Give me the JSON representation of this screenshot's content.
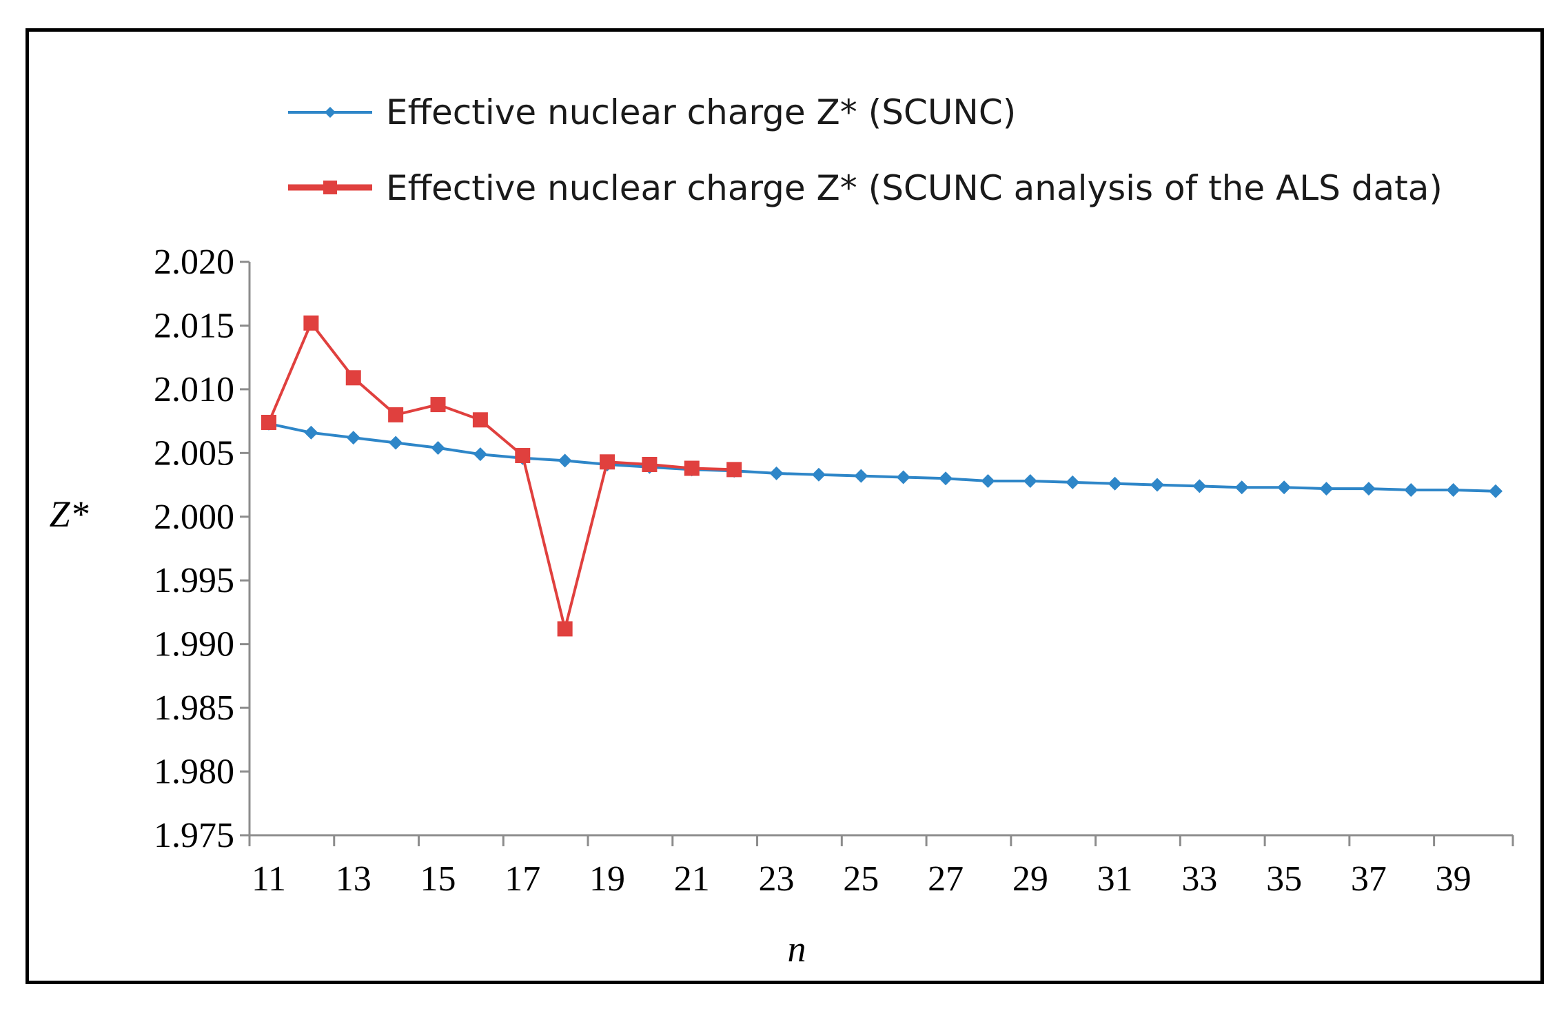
{
  "chart_data": {
    "type": "line",
    "title": "",
    "xlabel": "n",
    "ylabel": "Z*",
    "ylim": [
      1.975,
      2.02
    ],
    "y_ticks": [
      "2.020",
      "2.015",
      "2.010",
      "2.005",
      "2.000",
      "1.995",
      "1.990",
      "1.985",
      "1.980",
      "1.975"
    ],
    "x_tick_labels": [
      "11",
      "13",
      "15",
      "17",
      "19",
      "21",
      "23",
      "25",
      "27",
      "29",
      "31",
      "33",
      "35",
      "37",
      "39"
    ],
    "grid": false,
    "legend_position": "top",
    "series": [
      {
        "name": "Effective nuclear charge Z* (SCUNC)",
        "color": "#2e86c8",
        "marker": "diamond",
        "x": [
          11,
          12,
          13,
          14,
          15,
          16,
          17,
          18,
          19,
          20,
          21,
          22,
          23,
          24,
          25,
          26,
          27,
          28,
          29,
          30,
          31,
          32,
          33,
          34,
          35,
          36,
          37,
          38,
          39,
          40
        ],
        "values": [
          2.0073,
          2.0066,
          2.0062,
          2.0058,
          2.0054,
          2.0049,
          2.0046,
          2.0044,
          2.0041,
          2.0039,
          2.0037,
          2.0036,
          2.0034,
          2.0033,
          2.0032,
          2.0031,
          2.003,
          2.0028,
          2.0028,
          2.0027,
          2.0026,
          2.0025,
          2.0024,
          2.0023,
          2.0023,
          2.0022,
          2.0022,
          2.0021,
          2.0021,
          2.002
        ]
      },
      {
        "name": "Effective nuclear charge Z* (SCUNC analysis of the ALS data)",
        "color": "#e0403e",
        "marker": "square",
        "x": [
          11,
          12,
          13,
          14,
          15,
          16,
          17,
          18,
          19,
          20,
          21,
          22
        ],
        "values": [
          2.0074,
          2.0152,
          2.0109,
          2.008,
          2.0088,
          2.0076,
          2.0048,
          1.9912,
          2.0043,
          2.0041,
          2.0038,
          2.0037
        ]
      }
    ]
  }
}
